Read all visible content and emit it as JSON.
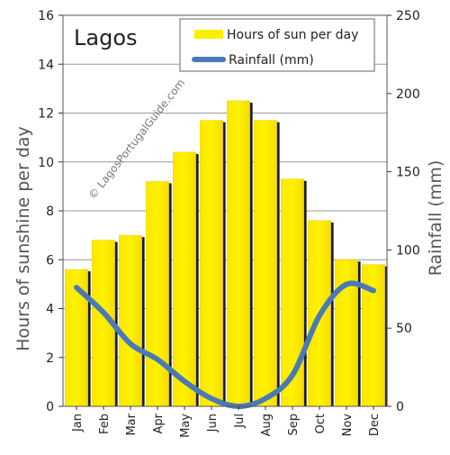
{
  "chart_data": {
    "type": "bar",
    "title": "Lagos",
    "categories": [
      "Jan",
      "Feb",
      "Mar",
      "Apr",
      "May",
      "Jun",
      "Jul",
      "Aug",
      "Sep",
      "Oct",
      "Nov",
      "Dec"
    ],
    "series": [
      {
        "name": "Hours of sun per day",
        "type": "bar",
        "axis": "left",
        "color": "#ffee00",
        "values": [
          5.6,
          6.8,
          7.0,
          9.2,
          10.4,
          11.7,
          12.5,
          11.7,
          9.3,
          7.6,
          6.0,
          5.8
        ]
      },
      {
        "name": "Rainfall (mm)",
        "type": "line",
        "axis": "right",
        "color": "#4a7ab5",
        "values": [
          76,
          60,
          40,
          30,
          16,
          5,
          0,
          5,
          20,
          58,
          78,
          74
        ]
      }
    ],
    "ylabel": "Hours of sunshine per day",
    "ylim": [
      0,
      16
    ],
    "yticks": [
      "0",
      "2",
      "4",
      "6",
      "8",
      "10",
      "12",
      "14",
      "16"
    ],
    "y2label": "Rainfall (mm)",
    "y2lim": [
      0,
      250
    ],
    "y2ticks": [
      "0",
      "50",
      "100",
      "150",
      "200",
      "250"
    ],
    "grid": true,
    "legend_position": "top-right",
    "watermark": "© LagosPortugalGuide.com"
  }
}
